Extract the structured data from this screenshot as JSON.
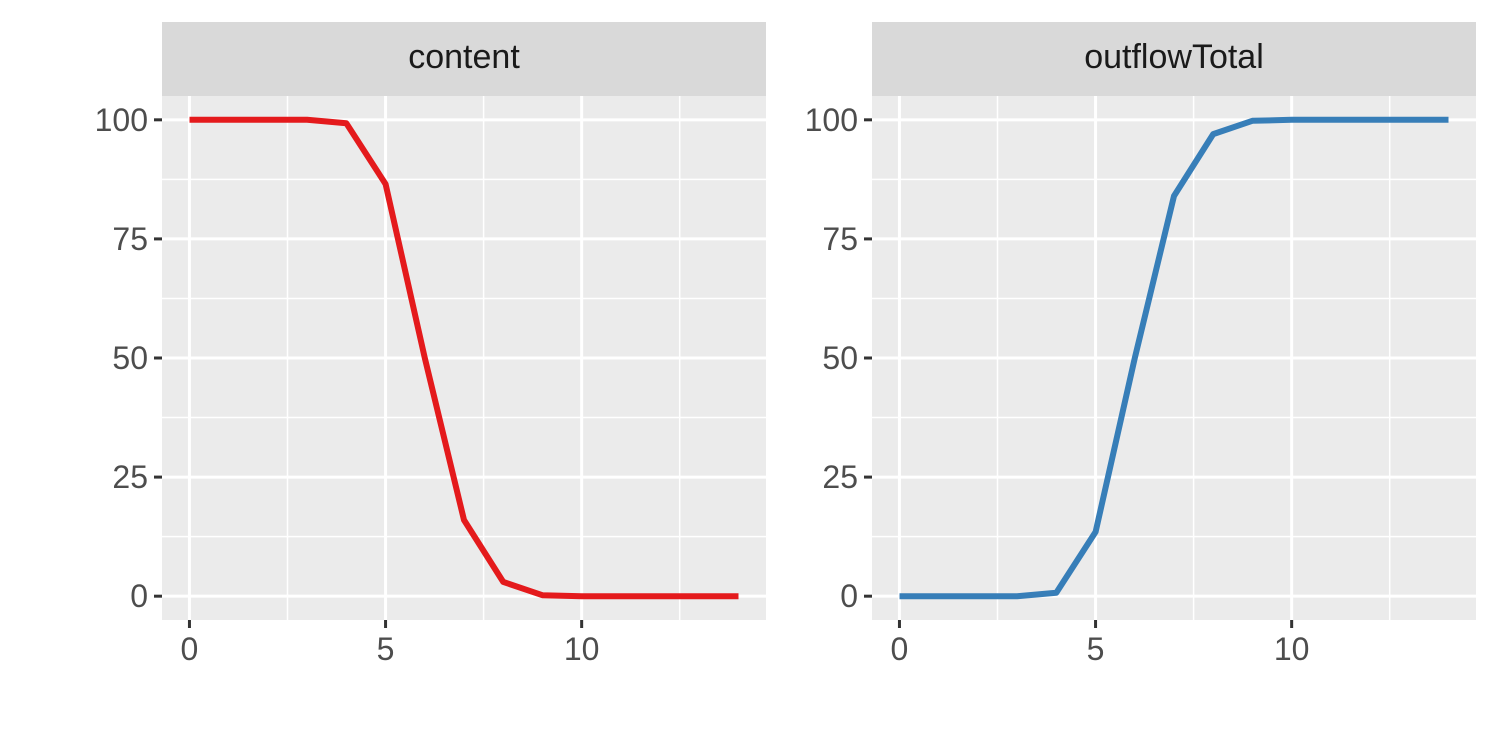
{
  "chart_data": [
    {
      "type": "line",
      "panel_label": "content",
      "x": [
        0,
        1,
        2,
        3,
        4,
        5,
        6,
        7,
        8,
        9,
        10,
        11,
        12,
        13,
        14
      ],
      "series": [
        {
          "values": [
            100,
            100,
            100,
            100,
            99.3,
            86.5,
            50,
            16,
            3,
            0.2,
            0,
            0,
            0,
            0,
            0
          ],
          "color": "#E41A1C"
        }
      ],
      "xlim": [
        -0.7,
        14.7
      ],
      "ylim": [
        -5,
        105
      ],
      "xticks": [
        0,
        5,
        10
      ],
      "xtick_labels": [
        "0",
        "5",
        "10"
      ],
      "yticks": [
        0,
        25,
        50,
        75,
        100
      ],
      "ytick_labels": [
        "0",
        "25",
        "50",
        "75",
        "100"
      ],
      "grid": true
    },
    {
      "type": "line",
      "panel_label": "outflowTotal",
      "x": [
        0,
        1,
        2,
        3,
        4,
        5,
        6,
        7,
        8,
        9,
        10,
        11,
        12,
        13,
        14
      ],
      "series": [
        {
          "values": [
            0,
            0,
            0,
            0,
            0.7,
            13.5,
            50,
            84,
            97,
            99.8,
            100,
            100,
            100,
            100,
            100
          ],
          "color": "#377EB8"
        }
      ],
      "xlim": [
        -0.7,
        14.7
      ],
      "ylim": [
        -5,
        105
      ],
      "xticks": [
        0,
        5,
        10
      ],
      "xtick_labels": [
        "0",
        "5",
        "10"
      ],
      "yticks": [
        0,
        25,
        50,
        75,
        100
      ],
      "ytick_labels": [
        "0",
        "25",
        "50",
        "75",
        "100"
      ],
      "grid": true
    }
  ],
  "colors": {
    "panel_background": "#EBEBEB",
    "strip_background": "#D9D9D9",
    "grid": "#FFFFFF",
    "tick_text": "#4D4D4D",
    "strip_text": "#1A1A1A"
  }
}
